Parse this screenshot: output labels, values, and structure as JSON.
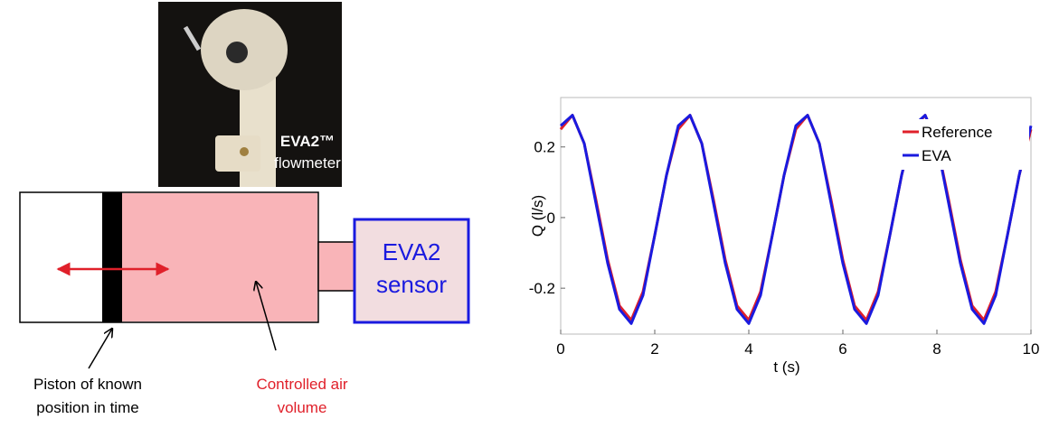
{
  "photo": {
    "title": "EVA2™",
    "caption": "flowmeter"
  },
  "diagram": {
    "sensor_label": [
      "EVA2",
      "sensor"
    ],
    "piston_label": [
      "Piston of known",
      "position in time"
    ],
    "volume_label": [
      "Controlled air",
      "volume"
    ]
  },
  "chart_data": {
    "type": "line",
    "x_label": "t (s)",
    "y_label": "Q (l/s)",
    "x": [
      0,
      0.25,
      0.5,
      0.75,
      1,
      1.25,
      1.5,
      1.75,
      2,
      2.25,
      2.5,
      2.75,
      3,
      3.25,
      3.5,
      3.75,
      4,
      4.25,
      4.5,
      4.75,
      5,
      5.25,
      5.5,
      5.75,
      6,
      6.25,
      6.5,
      6.75,
      7,
      7.25,
      7.5,
      7.75,
      8,
      8.25,
      8.5,
      8.75,
      9,
      9.25,
      9.5,
      9.75,
      10
    ],
    "series": [
      {
        "name": "Reference",
        "color": "#e0202a",
        "values": [
          0.25,
          0.29,
          0.21,
          0.05,
          -0.12,
          -0.25,
          -0.29,
          -0.21,
          -0.05,
          0.12,
          0.25,
          0.29,
          0.21,
          0.05,
          -0.12,
          -0.25,
          -0.29,
          -0.21,
          -0.05,
          0.12,
          0.25,
          0.29,
          0.21,
          0.05,
          -0.12,
          -0.25,
          -0.29,
          -0.21,
          -0.05,
          0.12,
          0.25,
          0.29,
          0.21,
          0.05,
          -0.12,
          -0.25,
          -0.29,
          -0.21,
          -0.05,
          0.12,
          0.25
        ]
      },
      {
        "name": "EVA",
        "color": "#1a1adf",
        "values": [
          0.26,
          0.29,
          0.21,
          0.04,
          -0.13,
          -0.26,
          -0.3,
          -0.22,
          -0.05,
          0.12,
          0.26,
          0.29,
          0.21,
          0.04,
          -0.13,
          -0.26,
          -0.3,
          -0.22,
          -0.05,
          0.12,
          0.26,
          0.29,
          0.21,
          0.04,
          -0.13,
          -0.26,
          -0.3,
          -0.22,
          -0.05,
          0.12,
          0.26,
          0.29,
          0.21,
          0.04,
          -0.13,
          -0.26,
          -0.3,
          -0.22,
          -0.05,
          0.12,
          0.26
        ]
      }
    ],
    "xlim": [
      0,
      10
    ],
    "xticks": [
      0,
      2,
      4,
      6,
      8,
      10
    ],
    "ylim": [
      -0.33,
      0.34
    ],
    "yticks": [
      -0.2,
      0,
      0.2
    ],
    "legend": "upper right"
  }
}
